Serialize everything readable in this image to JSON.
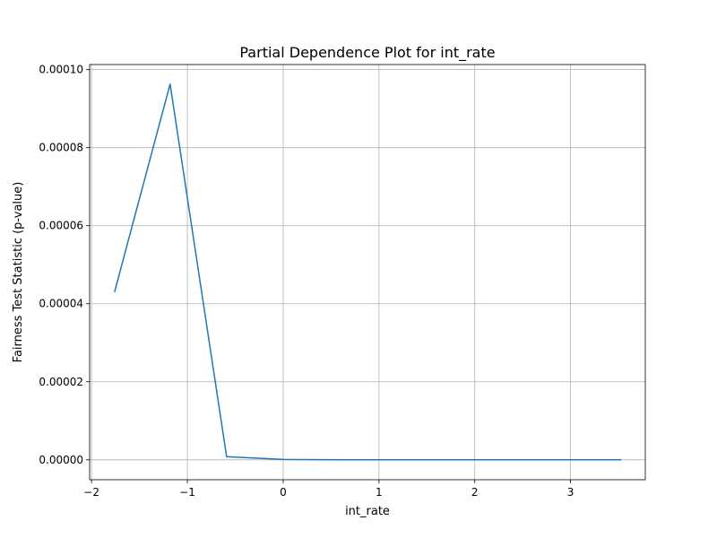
{
  "chart_data": {
    "type": "line",
    "title": "Partial Dependence Plot for int_rate",
    "xlabel": "int_rate",
    "ylabel": "Fairness Test Statistic (p-value)",
    "xlim": [
      -2.02,
      3.78
    ],
    "ylim": [
      -5.1e-06,
      0.0001013
    ],
    "x_ticks": [
      -2,
      -1,
      0,
      1,
      2,
      3
    ],
    "x_tick_labels": [
      "−2",
      "−1",
      "0",
      "1",
      "2",
      "3"
    ],
    "y_ticks": [
      0,
      2e-05,
      4e-05,
      6e-05,
      8e-05,
      0.0001
    ],
    "y_tick_labels": [
      "0.00000",
      "0.00002",
      "0.00004",
      "0.00006",
      "0.00008",
      "0.00010"
    ],
    "grid": true,
    "series": [
      {
        "color": "#1f77b4",
        "x": [
          -1.76,
          -1.18,
          -0.59,
          0.0,
          0.59,
          1.18,
          1.76,
          2.35,
          2.94,
          3.53
        ],
        "y": [
          4.3e-05,
          9.63e-05,
          8e-07,
          1e-07,
          0.0,
          0.0,
          0.0,
          0.0,
          0.0,
          0.0
        ]
      }
    ]
  }
}
